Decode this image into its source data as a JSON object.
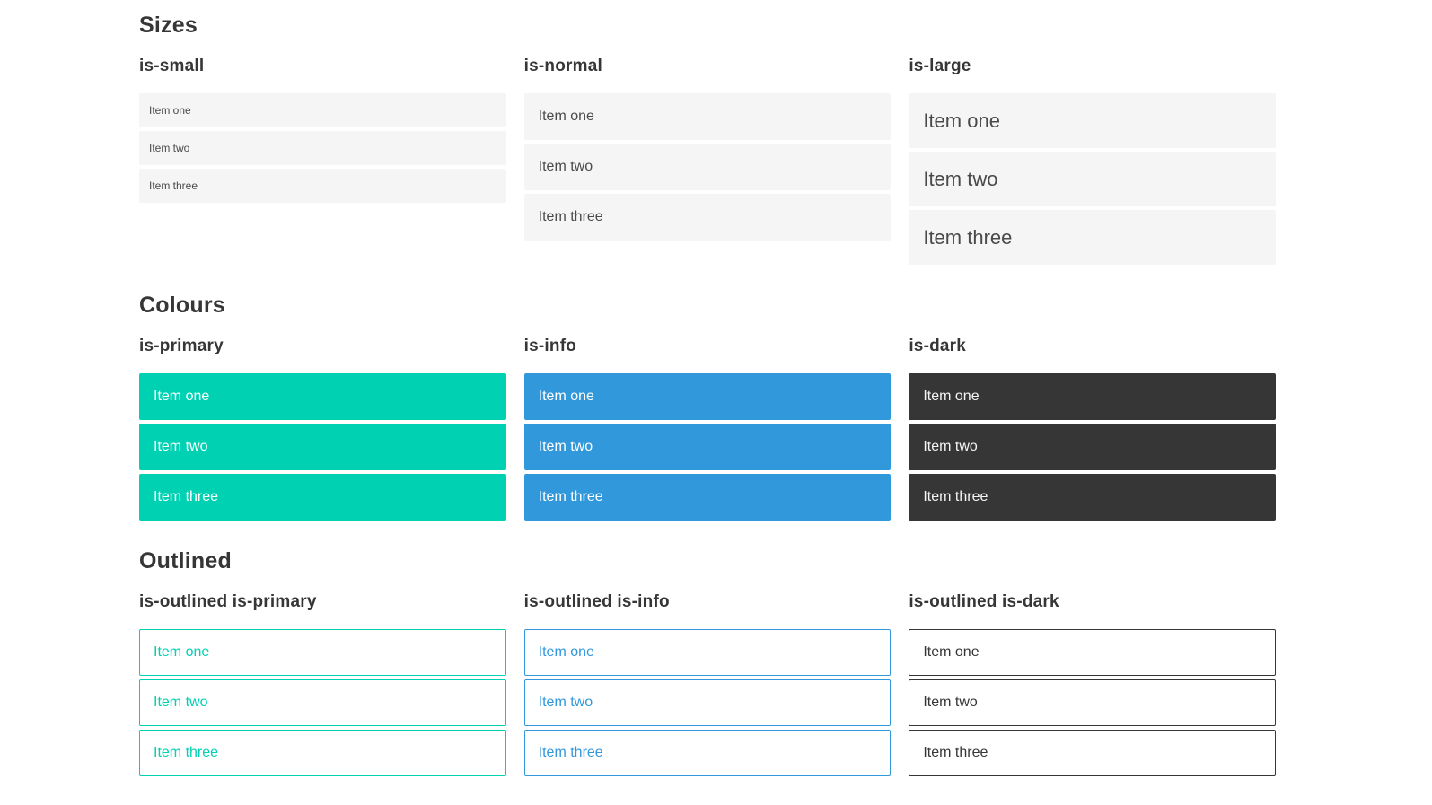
{
  "colors": {
    "primary": "#00d1b2",
    "info": "#3298dc",
    "dark": "#363636",
    "light_bg": "#f5f5f5",
    "item_text": "#4a4a4a",
    "heading": "#363636",
    "invert": "#ffffff",
    "dark_invert": "#f5f5f5",
    "page_bg": "#ffffff"
  },
  "sections": [
    {
      "title": "Sizes",
      "variants": [
        {
          "label": "is-small",
          "items": [
            "Item one",
            "Item two",
            "Item three"
          ]
        },
        {
          "label": "is-normal",
          "items": [
            "Item one",
            "Item two",
            "Item three"
          ]
        },
        {
          "label": "is-large",
          "items": [
            "Item one",
            "Item two",
            "Item three"
          ]
        }
      ]
    },
    {
      "title": "Colours",
      "variants": [
        {
          "label": "is-primary",
          "items": [
            "Item one",
            "Item two",
            "Item three"
          ]
        },
        {
          "label": "is-info",
          "items": [
            "Item one",
            "Item two",
            "Item three"
          ]
        },
        {
          "label": "is-dark",
          "items": [
            "Item one",
            "Item two",
            "Item three"
          ]
        }
      ]
    },
    {
      "title": "Outlined",
      "variants": [
        {
          "label": "is-outlined is-primary",
          "items": [
            "Item one",
            "Item two",
            "Item three"
          ]
        },
        {
          "label": "is-outlined is-info",
          "items": [
            "Item one",
            "Item two",
            "Item three"
          ]
        },
        {
          "label": "is-outlined is-dark",
          "items": [
            "Item one",
            "Item two",
            "Item three"
          ]
        }
      ]
    }
  ]
}
